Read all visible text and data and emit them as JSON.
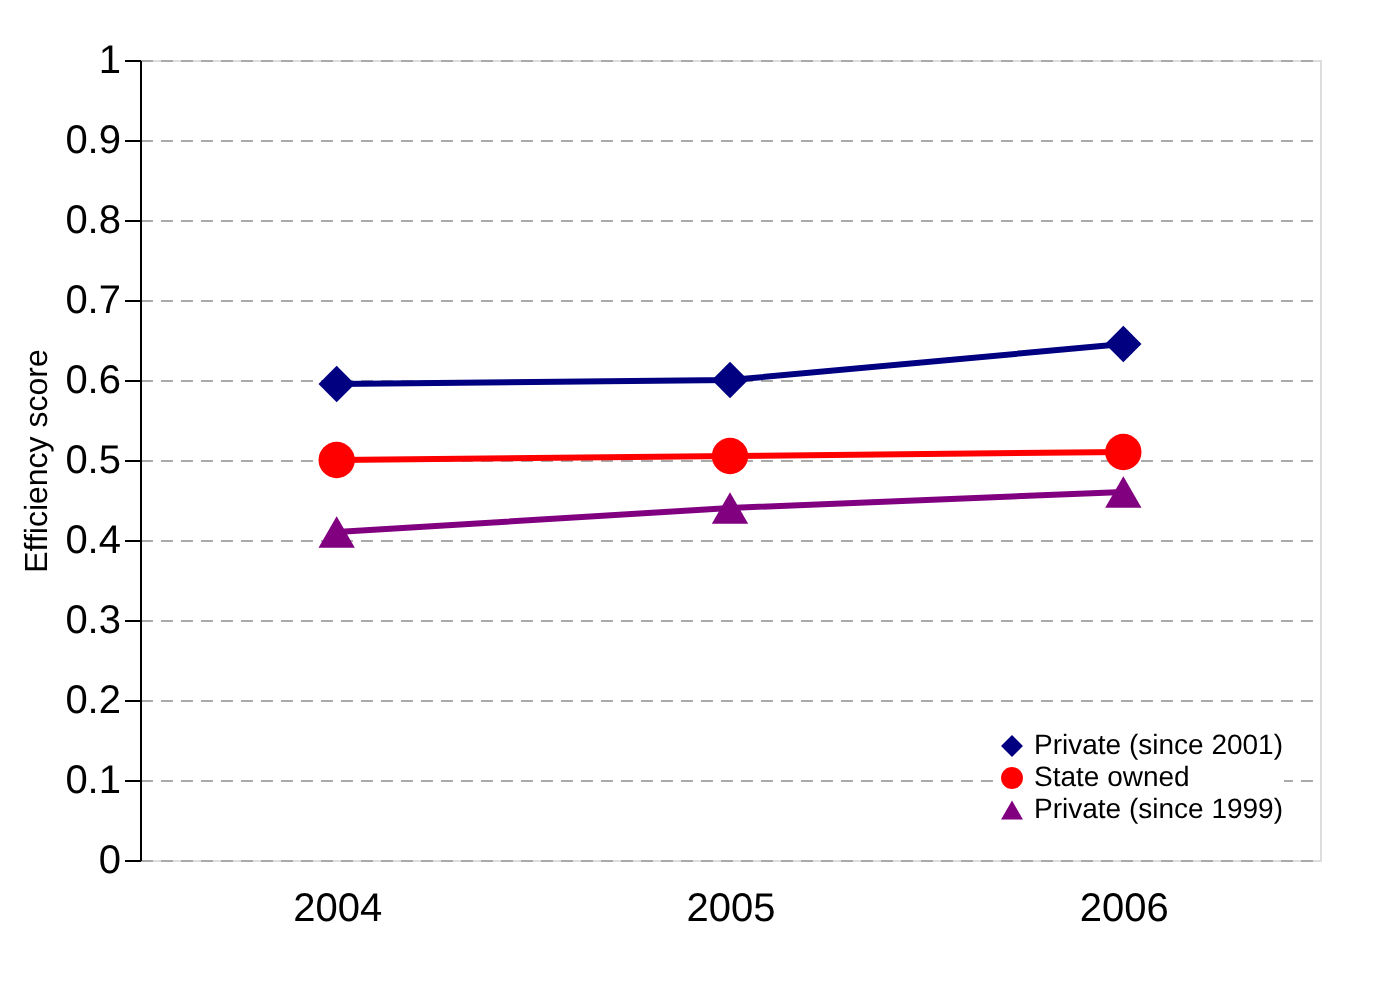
{
  "chart_data": {
    "type": "line",
    "ylabel": "Efficiency score",
    "categories": [
      "2004",
      "2005",
      "2006"
    ],
    "series": [
      {
        "name": "Private (since 2001)",
        "color": "#000080",
        "marker": "diamond",
        "values": [
          0.595,
          0.6,
          0.645
        ]
      },
      {
        "name": "State owned",
        "color": "#ff0000",
        "marker": "circle",
        "values": [
          0.5,
          0.505,
          0.51
        ]
      },
      {
        "name": "Private (since 1999)",
        "color": "#800080",
        "marker": "triangle",
        "values": [
          0.41,
          0.44,
          0.46
        ]
      }
    ],
    "ylim": [
      0,
      1
    ],
    "yticks": [
      0,
      0.1,
      0.2,
      0.3,
      0.4,
      0.5,
      0.6,
      0.7,
      0.8,
      0.9,
      1
    ],
    "grid": "y",
    "legend": "bottom right",
    "line_style": "solid"
  }
}
